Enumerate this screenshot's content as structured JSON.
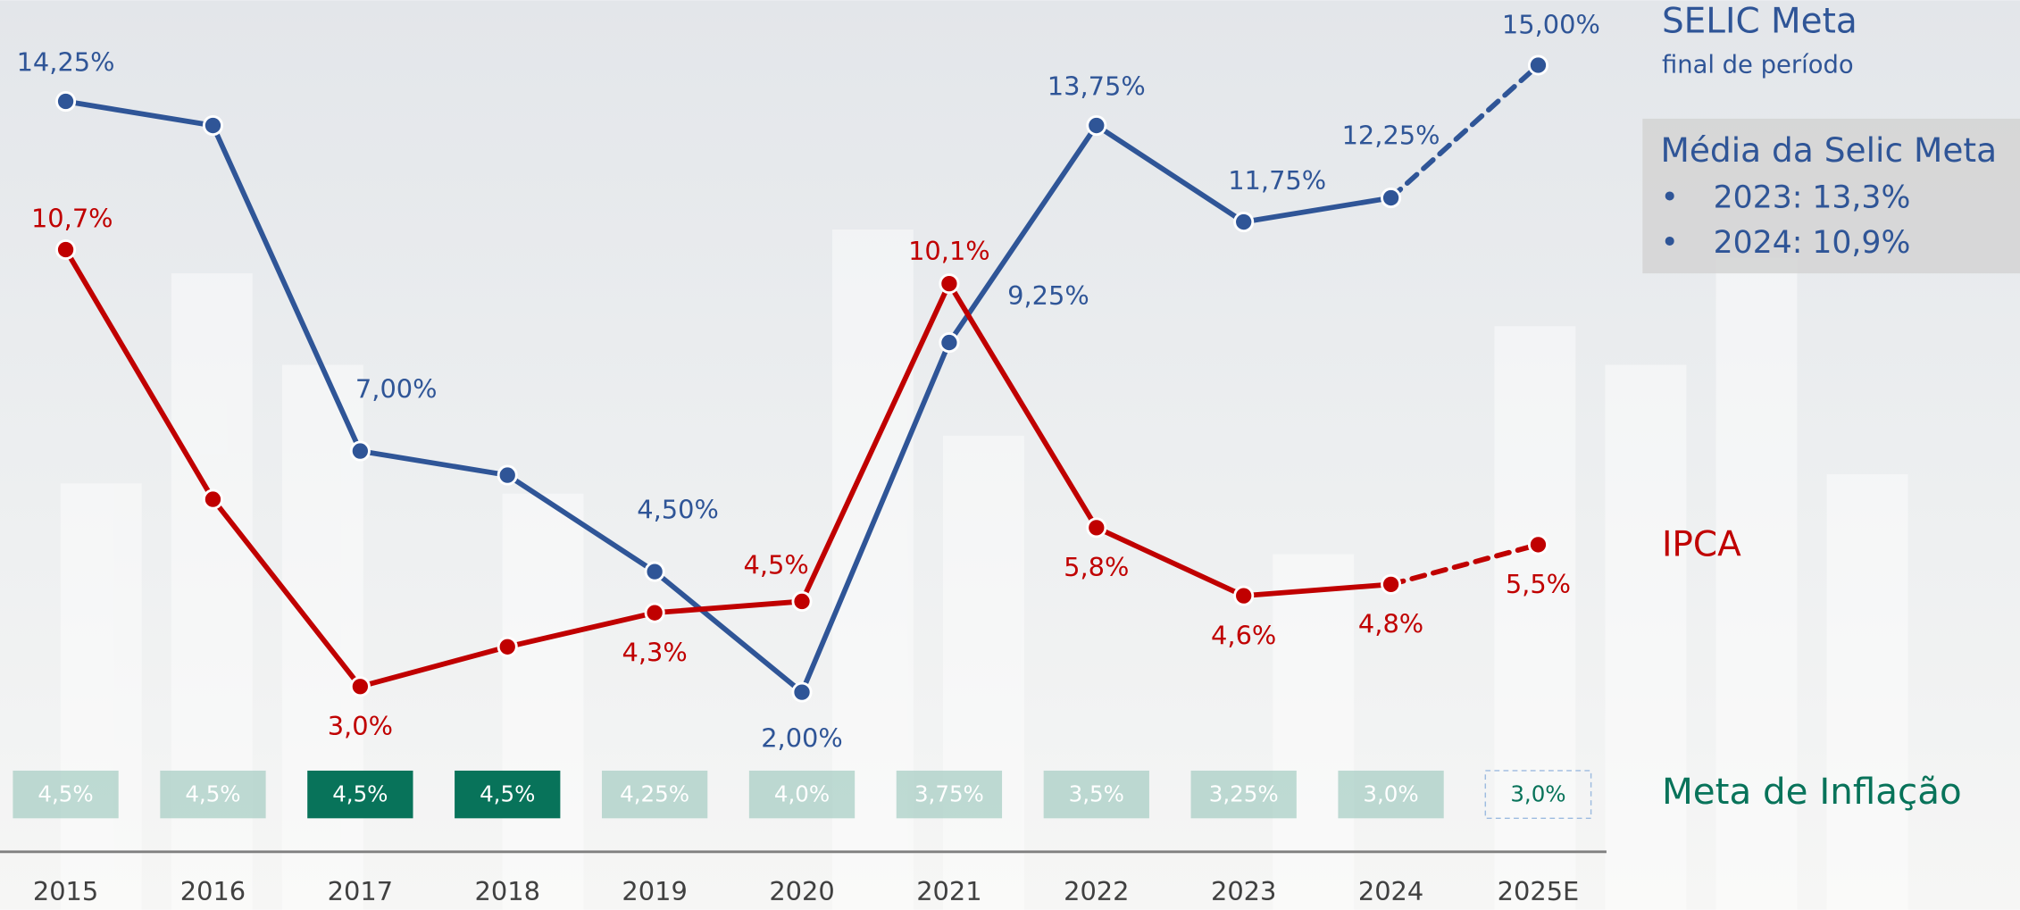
{
  "chart_data": {
    "type": "line",
    "categories": [
      "2015",
      "2016",
      "2017",
      "2018",
      "2019",
      "2020",
      "2021",
      "2022",
      "2023",
      "2024",
      "2025E"
    ],
    "ylim": [
      0,
      16
    ],
    "y2lim": [
      1.2,
      14.8
    ],
    "series": [
      {
        "name": "SELIC Meta",
        "color": "#2f5597",
        "values": [
          14.25,
          13.75,
          7.0,
          6.5,
          4.5,
          2.0,
          9.25,
          13.75,
          11.75,
          12.25,
          15.0
        ],
        "value_labels": [
          "14,25%",
          null,
          "7,00%",
          null,
          "4,50%",
          "2,00%",
          "9,25%",
          "13,75%",
          "11,75%",
          "12,25%",
          "15,00%"
        ]
      },
      {
        "name": "IPCA",
        "color": "#c00000",
        "axis": "y2",
        "values": [
          10.7,
          6.3,
          3.0,
          3.7,
          4.3,
          4.5,
          10.1,
          5.8,
          4.6,
          4.8,
          5.5
        ],
        "value_labels": [
          "10,7%",
          null,
          "3,0%",
          null,
          "4,3%",
          "4,5%",
          "10,1%",
          "5,8%",
          "4,6%",
          "4,8%",
          "5,5%"
        ]
      }
    ],
    "series_note": "final de período",
    "inflation_target": {
      "name": "Meta de Inflação",
      "color": "#08735a",
      "values": [
        4.5,
        4.5,
        4.5,
        4.5,
        4.25,
        4.0,
        3.75,
        3.5,
        3.25,
        3.0,
        3.0
      ],
      "value_labels": [
        "4,5%",
        "4,5%",
        "4,5%",
        "4,5%",
        "4,25%",
        "4,0%",
        "3,75%",
        "3,5%",
        "3,25%",
        "3,0%",
        "3,0%"
      ]
    },
    "average_panel": {
      "title": "Média da Selic Meta",
      "items": [
        "2023: 13,3%",
        "2024: 10,9%"
      ]
    }
  }
}
